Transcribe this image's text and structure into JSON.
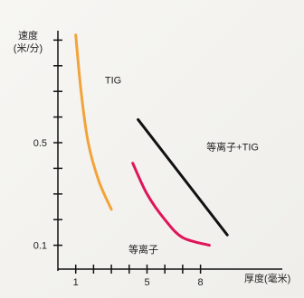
{
  "chart_data": {
    "type": "line",
    "title": "",
    "xlabel": "厚度(毫米)",
    "ylabel": "速度\n(米/分)",
    "x_ticks": [
      1,
      5,
      8
    ],
    "x_tick_labels": [
      "1",
      "5",
      "8"
    ],
    "y_ticks": [
      0.1,
      0.5
    ],
    "y_tick_labels": [
      "0.1",
      "0.5"
    ],
    "xlim": [
      0,
      12
    ],
    "ylim": [
      0,
      0.95
    ],
    "grid": false,
    "region_labels": [
      {
        "text": "TIG",
        "x": 3.1,
        "y": 0.73
      },
      {
        "text": "等离子+TIG",
        "x": 9.8,
        "y": 0.47
      },
      {
        "text": "等离子",
        "x": 4.8,
        "y": 0.07
      }
    ],
    "series": [
      {
        "name": "",
        "color": "#f2a33a",
        "points": [
          [
            1.0,
            0.92
          ],
          [
            1.3,
            0.7
          ],
          [
            1.7,
            0.5
          ],
          [
            2.3,
            0.35
          ],
          [
            3.0,
            0.24
          ]
        ]
      },
      {
        "name": "",
        "color": "#e0145a",
        "points": [
          [
            4.2,
            0.42
          ],
          [
            5.0,
            0.3
          ],
          [
            6.0,
            0.2
          ],
          [
            7.0,
            0.13
          ],
          [
            8.5,
            0.1
          ]
        ]
      },
      {
        "name": "",
        "color": "#111111",
        "points": [
          [
            4.5,
            0.59
          ],
          [
            9.5,
            0.14
          ]
        ]
      }
    ],
    "background": {
      "colors": [
        "#f7f6f3",
        "#efeeea"
      ]
    }
  }
}
